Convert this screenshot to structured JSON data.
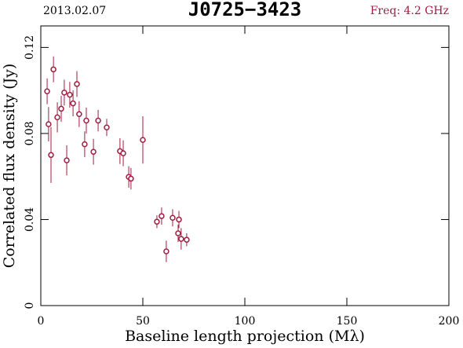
{
  "chart_data": {
    "type": "scatter",
    "date": "2013.02.07",
    "title": "J0725−3423",
    "frequency": "Freq: 4.2 GHz",
    "xlabel": "Baseline length projection (Mλ)",
    "ylabel": "Correlated flux density (Jy)",
    "color": "#a01c40",
    "x": [
      3.1,
      3.8,
      5.0,
      6.2,
      8.1,
      10.0,
      11.5,
      12.7,
      14.2,
      15.8,
      17.7,
      18.8,
      21.5,
      22.3,
      25.8,
      28.1,
      32.3,
      38.8,
      40.4,
      43.1,
      44.2,
      50.0,
      56.9,
      59.2,
      61.5,
      64.6,
      67.3,
      67.7,
      68.8,
      71.5
    ],
    "values": [
      0.0996,
      0.0843,
      0.07,
      0.1098,
      0.0875,
      0.0915,
      0.099,
      0.0675,
      0.098,
      0.094,
      0.103,
      0.089,
      0.075,
      0.086,
      0.0715,
      0.086,
      0.0828,
      0.0718,
      0.0708,
      0.0598,
      0.059,
      0.077,
      0.039,
      0.0416,
      0.0252,
      0.0408,
      0.0336,
      0.04,
      0.031,
      0.0306
    ],
    "errors": [
      0.006,
      0.008,
      0.013,
      0.006,
      0.007,
      0.006,
      0.006,
      0.007,
      0.006,
      0.006,
      0.006,
      0.006,
      0.006,
      0.006,
      0.006,
      0.005,
      0.004,
      0.006,
      0.006,
      0.005,
      0.005,
      0.011,
      0.003,
      0.004,
      0.005,
      0.004,
      0.004,
      0.004,
      0.005,
      0.003
    ],
    "xlim": [
      0,
      200
    ],
    "xticks": [
      0,
      50,
      100,
      150,
      200
    ],
    "ylim": [
      0,
      0.13
    ],
    "yticks": [
      0,
      0.04,
      0.08,
      0.12
    ]
  }
}
